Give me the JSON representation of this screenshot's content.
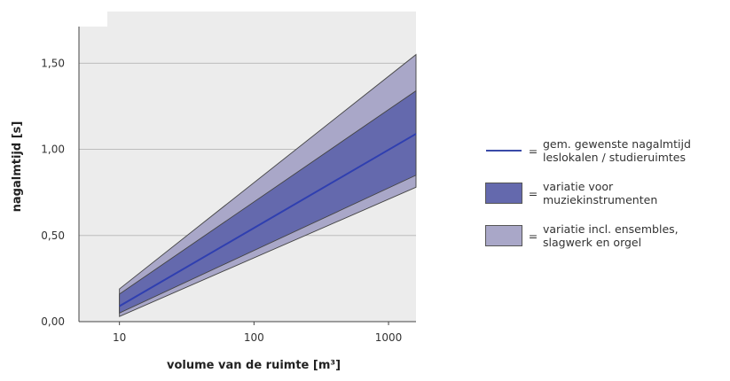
{
  "chart_data": {
    "type": "area",
    "xlabel": "volume van de ruimte [m³]",
    "ylabel": "nagalmtijd [s]",
    "x_scale": "log",
    "xlim": [
      5,
      1600
    ],
    "ylim": [
      0,
      1.8
    ],
    "x_ticks": [
      {
        "value": 10,
        "label": "10"
      },
      {
        "value": 100,
        "label": "100"
      },
      {
        "value": 1000,
        "label": "1000"
      }
    ],
    "y_ticks": [
      {
        "value": 0,
        "label": "0,00"
      },
      {
        "value": 0.5,
        "label": "0,50"
      },
      {
        "value": 1.0,
        "label": "1,00"
      },
      {
        "value": 1.5,
        "label": "1,50"
      }
    ],
    "grid": "horizontal",
    "x": [
      10,
      1600
    ],
    "series": [
      {
        "name": "variatie incl. ensembles, slagwerk en orgel",
        "kind": "band",
        "lower": [
          0.03,
          0.78
        ],
        "upper": [
          0.19,
          1.55
        ],
        "color": "#a9a7c8"
      },
      {
        "name": "variatie voor muziekinstrumenten",
        "kind": "band",
        "lower": [
          0.05,
          0.85
        ],
        "upper": [
          0.16,
          1.34
        ],
        "color": "#6469ad"
      },
      {
        "name": "gem. gewenste nagalmtijd leslokalen / studieruimtes",
        "kind": "line",
        "values": [
          0.09,
          1.09
        ],
        "color": "#2f3fb0"
      }
    ],
    "legend": {
      "placement": "right",
      "items": [
        {
          "swatch": "line",
          "color": "#3a4aa8",
          "eq": "=",
          "line1": "gem. gewenste nagalmtijd",
          "line2": "leslokalen / studieruimtes"
        },
        {
          "swatch": "box",
          "color": "#6469ad",
          "eq": "=",
          "line1": "variatie voor",
          "line2": "muziekinstrumenten"
        },
        {
          "swatch": "box",
          "color": "#a9a7c8",
          "eq": "=",
          "line1": "variatie incl. ensembles,",
          "line2": "slagwerk en orgel"
        }
      ]
    }
  }
}
